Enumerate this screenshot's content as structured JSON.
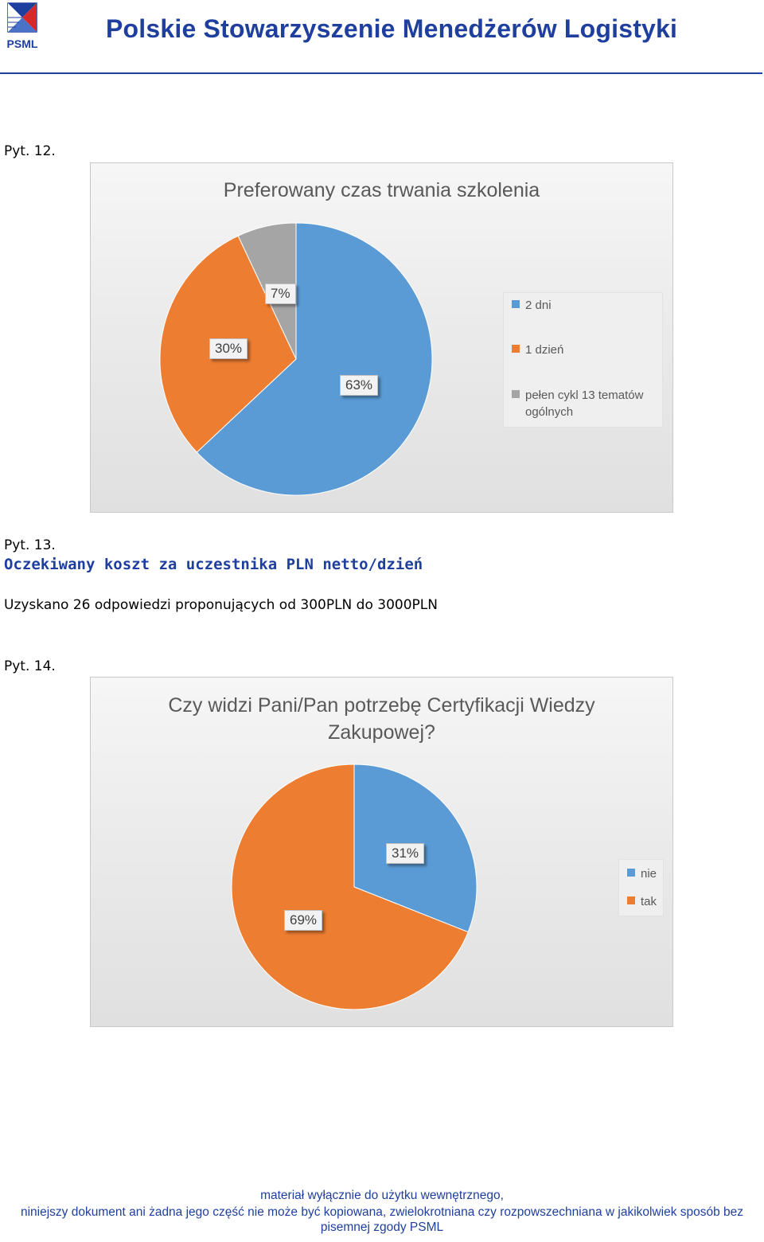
{
  "header": {
    "logo_text": "PSML",
    "org_name": "Polskie Stowarzyszenie Menedżerów Logistyki"
  },
  "q12": {
    "label": "Pyt. 12."
  },
  "q13": {
    "label": "Pyt. 13.",
    "title": "Oczekiwany koszt za uczestnika PLN netto/dzień",
    "answer": "Uzyskano 26 odpowiedzi proponujących od 300PLN do 3000PLN"
  },
  "q14": {
    "label": "Pyt. 14."
  },
  "chart_data": [
    {
      "type": "pie",
      "title": "Preferowany czas trwania szkolenia",
      "categories": [
        "2 dni",
        "1 dzień",
        "pełen cykl 13 tematów ogólnych"
      ],
      "values": [
        63,
        30,
        7
      ],
      "labels": [
        "63%",
        "30%",
        "7%"
      ],
      "colors": [
        "#5b9bd5",
        "#ed7d31",
        "#a5a5a5"
      ],
      "legend": "right"
    },
    {
      "type": "pie",
      "title": "Czy widzi Pani/Pan potrzebę Certyfikacji Wiedzy Zakupowej?",
      "categories": [
        "nie",
        "tak"
      ],
      "values": [
        31,
        69
      ],
      "labels": [
        "31%",
        "69%"
      ],
      "colors": [
        "#5b9bd5",
        "#ed7d31"
      ],
      "legend": "right"
    }
  ],
  "footer": {
    "line1": "materiał wyłącznie do użytku wewnętrznego,",
    "line2": "niniejszy dokument ani żadna jego część nie może być kopiowana, zwielokrotniana czy rozpowszechniana w jakikolwiek sposób bez",
    "line3": "pisemnej zgody PSML"
  }
}
